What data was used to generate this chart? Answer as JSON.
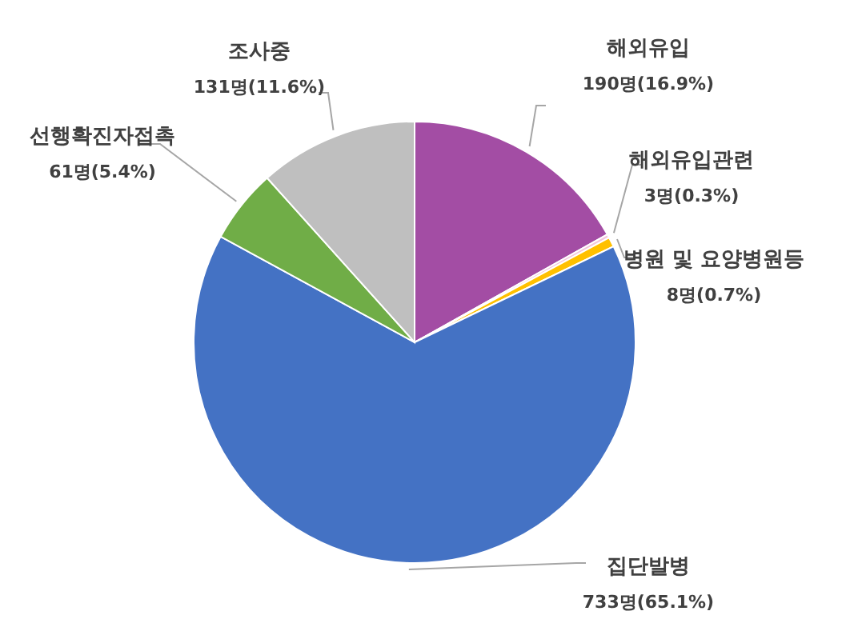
{
  "chart_data": {
    "type": "pie",
    "categories": [
      "해외유입",
      "해외유입관련",
      "병원 및 요양병원등",
      "집단발병",
      "선행확진자접촉",
      "조사중"
    ],
    "values": [
      190,
      3,
      8,
      733,
      61,
      131
    ],
    "value_labels": [
      "190명(16.9%)",
      "3명(0.3%)",
      "8명(0.7%)",
      "733명(65.1%)",
      "61명(5.4%)",
      "131명(11.6%)"
    ],
    "colors": [
      "#a34da4",
      "#f4c6dc",
      "#ffc000",
      "#4472c4",
      "#70ad47",
      "#bfbfbf"
    ],
    "legend": false
  }
}
